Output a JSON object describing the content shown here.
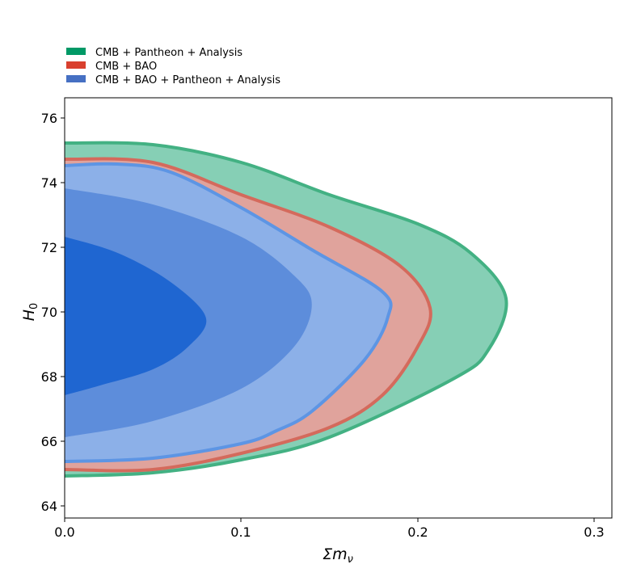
{
  "chart_data": {
    "type": "contour",
    "xlabel": "Σm",
    "xlabel_subscript": "ν",
    "ylabel": "H",
    "ylabel_subscript": "0",
    "xlim": [
      0.0,
      0.31
    ],
    "ylim": [
      63.6,
      76.6
    ],
    "x_ticks": [
      "0.0",
      "0.1",
      "0.2",
      "0.3"
    ],
    "x_tick_values": [
      0.0,
      0.1,
      0.2,
      0.3
    ],
    "y_ticks": [
      "64",
      "66",
      "68",
      "70",
      "72",
      "74",
      "76"
    ],
    "y_tick_values": [
      64,
      66,
      68,
      70,
      72,
      74,
      76
    ],
    "legend_position": "top-left, above plot",
    "series": [
      {
        "name": "CMB + Pantheon + Analysis",
        "color": "#2ca02c",
        "fill": "#86cfb5",
        "edge": "#43b183",
        "outer_contour": [
          [
            0.0,
            75.2
          ],
          [
            0.05,
            75.15
          ],
          [
            0.1,
            74.6
          ],
          [
            0.15,
            73.6
          ],
          [
            0.2,
            72.7
          ],
          [
            0.23,
            71.8
          ],
          [
            0.25,
            70.4
          ],
          [
            0.24,
            68.8
          ],
          [
            0.22,
            67.9
          ],
          [
            0.15,
            66.1
          ],
          [
            0.1,
            65.4
          ],
          [
            0.05,
            65.0
          ],
          [
            0.0,
            64.9
          ]
        ]
      },
      {
        "name": "CMB + BAO",
        "color": "#d62728",
        "fill": "#e0a39c",
        "edge": "#d46a5c",
        "outer_contour": [
          [
            0.0,
            74.7
          ],
          [
            0.05,
            74.6
          ],
          [
            0.1,
            73.6
          ],
          [
            0.15,
            72.6
          ],
          [
            0.19,
            71.4
          ],
          [
            0.207,
            70.1
          ],
          [
            0.2,
            68.9
          ],
          [
            0.18,
            67.4
          ],
          [
            0.15,
            66.4
          ],
          [
            0.1,
            65.6
          ],
          [
            0.05,
            65.1
          ],
          [
            0.0,
            65.1
          ]
        ],
        "inner_contour": [
          [
            0.0,
            73.8
          ],
          [
            0.05,
            73.5
          ],
          [
            0.1,
            72.8
          ],
          [
            0.15,
            71.6
          ],
          [
            0.175,
            70.2
          ],
          [
            0.17,
            68.8
          ],
          [
            0.15,
            67.4
          ],
          [
            0.1,
            66.1
          ],
          [
            0.05,
            65.6
          ],
          [
            0.0,
            65.5
          ]
        ]
      },
      {
        "name": "CMB + BAO + Pantheon + Analysis",
        "color": "#4f7ec9",
        "fill_outer": "#8cb0e8",
        "fill_mid": "#5d8ddb",
        "fill_inner": "#1f66d1",
        "edge": "#5d95e4",
        "outer_contour": [
          [
            0.0,
            74.5
          ],
          [
            0.03,
            74.55
          ],
          [
            0.06,
            74.3
          ],
          [
            0.1,
            73.2
          ],
          [
            0.14,
            71.9
          ],
          [
            0.18,
            70.6
          ],
          [
            0.183,
            69.8
          ],
          [
            0.17,
            68.5
          ],
          [
            0.14,
            66.9
          ],
          [
            0.12,
            66.3
          ],
          [
            0.1,
            65.9
          ],
          [
            0.05,
            65.45
          ],
          [
            0.0,
            65.35
          ]
        ],
        "mid_contour": [
          [
            0.0,
            73.8
          ],
          [
            0.05,
            73.3
          ],
          [
            0.1,
            72.3
          ],
          [
            0.13,
            71.1
          ],
          [
            0.14,
            70.2
          ],
          [
            0.13,
            68.9
          ],
          [
            0.1,
            67.6
          ],
          [
            0.05,
            66.6
          ],
          [
            0.0,
            66.1
          ]
        ],
        "inner_contour": [
          [
            0.0,
            72.3
          ],
          [
            0.03,
            71.8
          ],
          [
            0.06,
            70.9
          ],
          [
            0.08,
            69.8
          ],
          [
            0.07,
            68.9
          ],
          [
            0.05,
            68.2
          ],
          [
            0.02,
            67.7
          ],
          [
            0.0,
            67.4
          ]
        ]
      }
    ]
  }
}
